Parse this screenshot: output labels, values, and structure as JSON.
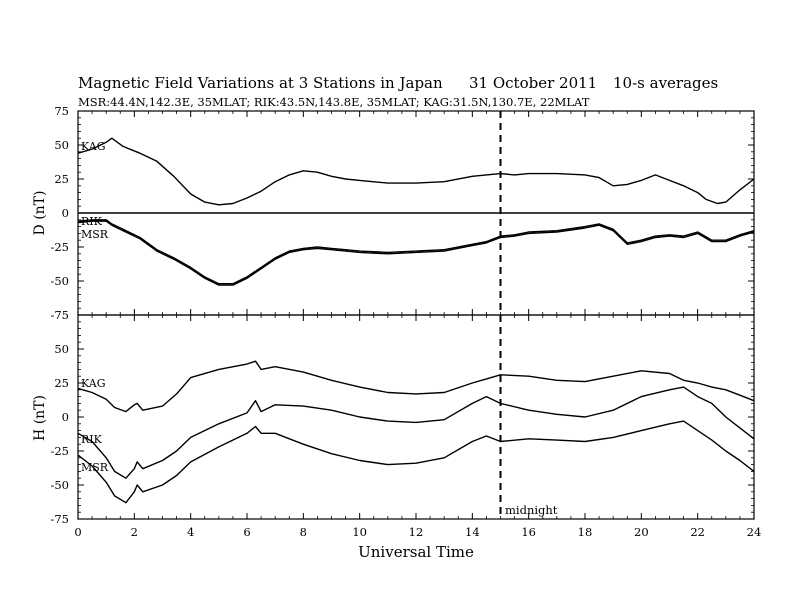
{
  "header": {
    "title": "Magnetic Field Variations at 3 Stations in Japan",
    "date": "31 October 2011",
    "cadence": "10-s averages",
    "subtitle": "MSR:44.4N,142.3E, 35MLAT;  RIK:43.5N,143.8E, 35MLAT;  KAG:31.5N,130.7E, 22MLAT"
  },
  "chart_data": [
    {
      "type": "line",
      "panel": "top",
      "ylabel": "D (nT)",
      "xlim": [
        0,
        24
      ],
      "ylim": [
        -75,
        75
      ],
      "yticks": [
        75,
        50,
        25,
        0,
        -25,
        -50,
        -75
      ],
      "xticks": [
        0,
        2,
        4,
        6,
        8,
        10,
        12,
        14,
        16,
        18,
        20,
        22,
        24
      ],
      "zero_line": true,
      "series": [
        {
          "name": "KAG",
          "x": [
            0,
            0.5,
            1,
            1.2,
            1.6,
            2.2,
            2.8,
            3.4,
            4,
            4.5,
            5,
            5.5,
            6,
            6.5,
            7,
            7.5,
            8,
            8.5,
            9,
            9.5,
            10,
            11,
            12,
            13,
            14,
            15,
            15.5,
            16,
            17,
            18,
            18.5,
            19,
            19.5,
            20,
            20.5,
            21,
            21.5,
            22,
            22.3,
            22.7,
            23,
            23.5,
            24
          ],
          "y": [
            44,
            47,
            52,
            55,
            49,
            44,
            38,
            27,
            14,
            8,
            6,
            7,
            11,
            16,
            23,
            28,
            31,
            30,
            27,
            25,
            24,
            22,
            22,
            23,
            27,
            29,
            28,
            29,
            29,
            28,
            26,
            20,
            21,
            24,
            28,
            24,
            20,
            15,
            10,
            7,
            8,
            17,
            25
          ]
        },
        {
          "name": "RIK",
          "x": [
            0,
            0.5,
            1,
            1.2,
            1.6,
            2.2,
            2.8,
            3.4,
            4,
            4.5,
            5,
            5.5,
            6,
            6.5,
            7,
            7.5,
            8,
            8.5,
            9,
            9.5,
            10,
            11,
            12,
            13,
            14,
            14.5,
            15,
            15.5,
            16,
            17,
            18,
            18.5,
            19,
            19.5,
            20,
            20.5,
            21,
            21.5,
            22,
            22.5,
            23,
            23.5,
            24
          ],
          "y": [
            -6,
            -5,
            -5,
            -8,
            -12,
            -18,
            -27,
            -33,
            -40,
            -47,
            -52,
            -52,
            -47,
            -40,
            -33,
            -28,
            -26,
            -25,
            -26,
            -27,
            -28,
            -29,
            -28,
            -27,
            -23,
            -21,
            -17,
            -16,
            -14,
            -13,
            -10,
            -8,
            -12,
            -22,
            -20,
            -17,
            -16,
            -17,
            -14,
            -20,
            -20,
            -16,
            -13
          ]
        },
        {
          "name": "MSR",
          "x": [
            0,
            0.5,
            1,
            1.2,
            1.6,
            2.2,
            2.8,
            3.4,
            4,
            4.5,
            5,
            5.5,
            6,
            6.5,
            7,
            7.5,
            8,
            8.5,
            9,
            9.5,
            10,
            11,
            12,
            13,
            14,
            14.5,
            15,
            15.5,
            16,
            17,
            18,
            18.5,
            19,
            19.5,
            20,
            20.5,
            21,
            21.5,
            22,
            22.5,
            23,
            23.5,
            24
          ],
          "y": [
            -7,
            -6,
            -6,
            -9,
            -13,
            -19,
            -28,
            -34,
            -41,
            -48,
            -53,
            -53,
            -48,
            -41,
            -34,
            -29,
            -27,
            -26,
            -27,
            -28,
            -29,
            -30,
            -29,
            -28,
            -24,
            -22,
            -18,
            -17,
            -15,
            -14,
            -11,
            -9,
            -13,
            -23,
            -21,
            -18,
            -17,
            -18,
            -15,
            -21,
            -21,
            -17,
            -14
          ]
        }
      ]
    },
    {
      "type": "line",
      "panel": "bottom",
      "ylabel": "H (nT)",
      "xlabel": "Universal Time",
      "xlim": [
        0,
        24
      ],
      "ylim": [
        -75,
        75
      ],
      "yticks": [
        75,
        50,
        25,
        0,
        -25,
        -50,
        -75
      ],
      "xticks": [
        0,
        2,
        4,
        6,
        8,
        10,
        12,
        14,
        16,
        18,
        20,
        22,
        24
      ],
      "series": [
        {
          "name": "KAG",
          "x": [
            0,
            0.5,
            1,
            1.3,
            1.7,
            2,
            2.1,
            2.3,
            3,
            3.5,
            4,
            5,
            6,
            6.3,
            6.5,
            7,
            8,
            9,
            10,
            11,
            12,
            13,
            14,
            14.5,
            15,
            16,
            17,
            18,
            19,
            20,
            21,
            21.5,
            22,
            22.5,
            23,
            23.5,
            24
          ],
          "y": [
            21,
            18,
            13,
            7,
            4,
            9,
            10,
            5,
            8,
            17,
            29,
            35,
            39,
            41,
            35,
            37,
            33,
            27,
            22,
            18,
            17,
            18,
            25,
            28,
            31,
            30,
            27,
            26,
            30,
            34,
            32,
            27,
            25,
            22,
            20,
            16,
            12
          ]
        },
        {
          "name": "RIK",
          "x": [
            0,
            0.5,
            1,
            1.3,
            1.7,
            2,
            2.1,
            2.3,
            3,
            3.5,
            4,
            5,
            6,
            6.3,
            6.5,
            7,
            8,
            9,
            10,
            11,
            12,
            13,
            14,
            14.5,
            15,
            16,
            17,
            18,
            19,
            20,
            21,
            21.5,
            22,
            22.5,
            23,
            23.5,
            24
          ],
          "y": [
            -12,
            -18,
            -30,
            -40,
            -45,
            -38,
            -33,
            -38,
            -32,
            -25,
            -15,
            -5,
            3,
            12,
            4,
            9,
            8,
            5,
            0,
            -3,
            -4,
            -2,
            10,
            15,
            10,
            5,
            2,
            0,
            5,
            15,
            20,
            22,
            15,
            10,
            0,
            -8,
            -16
          ]
        },
        {
          "name": "MSR",
          "x": [
            0,
            0.5,
            1,
            1.3,
            1.7,
            2,
            2.1,
            2.3,
            3,
            3.5,
            4,
            5,
            6,
            6.3,
            6.5,
            7,
            8,
            9,
            10,
            11,
            12,
            13,
            14,
            14.5,
            15,
            16,
            17,
            18,
            19,
            20,
            21,
            21.5,
            22,
            22.5,
            23,
            23.5,
            24
          ],
          "y": [
            -28,
            -36,
            -48,
            -58,
            -63,
            -55,
            -50,
            -55,
            -50,
            -43,
            -33,
            -22,
            -12,
            -7,
            -12,
            -12,
            -20,
            -27,
            -32,
            -35,
            -34,
            -30,
            -18,
            -14,
            -18,
            -16,
            -17,
            -18,
            -15,
            -10,
            -5,
            -3,
            -10,
            -17,
            -25,
            -32,
            -40
          ]
        }
      ],
      "annotations": [
        {
          "text": "midnight",
          "x": 15
        }
      ]
    }
  ],
  "midnight_ut": 15,
  "labels": {
    "midnight": "midnight"
  }
}
